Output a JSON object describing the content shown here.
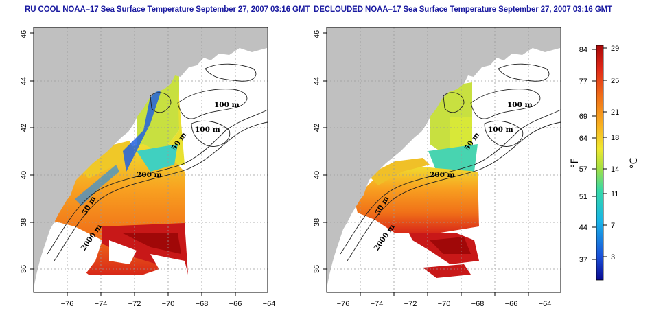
{
  "panels": [
    {
      "id": "left",
      "title": "RU COOL NOAA–17 Sea Surface Temperature September 27, 2007 03:16 GMT",
      "contour_labels": [
        "100 m",
        "100 m",
        "50 m",
        "200 m",
        "50 m",
        "2000 m"
      ]
    },
    {
      "id": "right",
      "title": "DECLOUDED NOAA–17 Sea Surface Temperature September 27, 2007 03:16 GMT",
      "contour_labels": [
        "100 m",
        "100 m",
        "50 m",
        "200 m",
        "50 m",
        "2000 m"
      ]
    }
  ],
  "axes": {
    "lon_ticks": [
      "−76",
      "−74",
      "−72",
      "−70",
      "−68",
      "−66",
      "−64"
    ],
    "lat_ticks": [
      "36",
      "38",
      "40",
      "42",
      "44",
      "46"
    ]
  },
  "colorbar": {
    "fahrenheit_ticks": [
      "84",
      "77",
      "69",
      "64",
      "57",
      "51",
      "44",
      "37"
    ],
    "celsius_ticks": [
      "29",
      "25",
      "21",
      "18",
      "14",
      "11",
      "7",
      "3"
    ],
    "fahrenheit_unit": "°F",
    "celsius_unit": "°C",
    "colors": [
      "#0a0a90",
      "#1a4fd8",
      "#18b4e8",
      "#35d8a8",
      "#a8e040",
      "#f0e830",
      "#f8b020",
      "#f07018",
      "#e02818",
      "#a80808"
    ]
  },
  "colors": {
    "land": "#c0c0c0",
    "ocean_nodata": "#ffffff",
    "title": "#1a1aa0",
    "grid": "#999999"
  }
}
